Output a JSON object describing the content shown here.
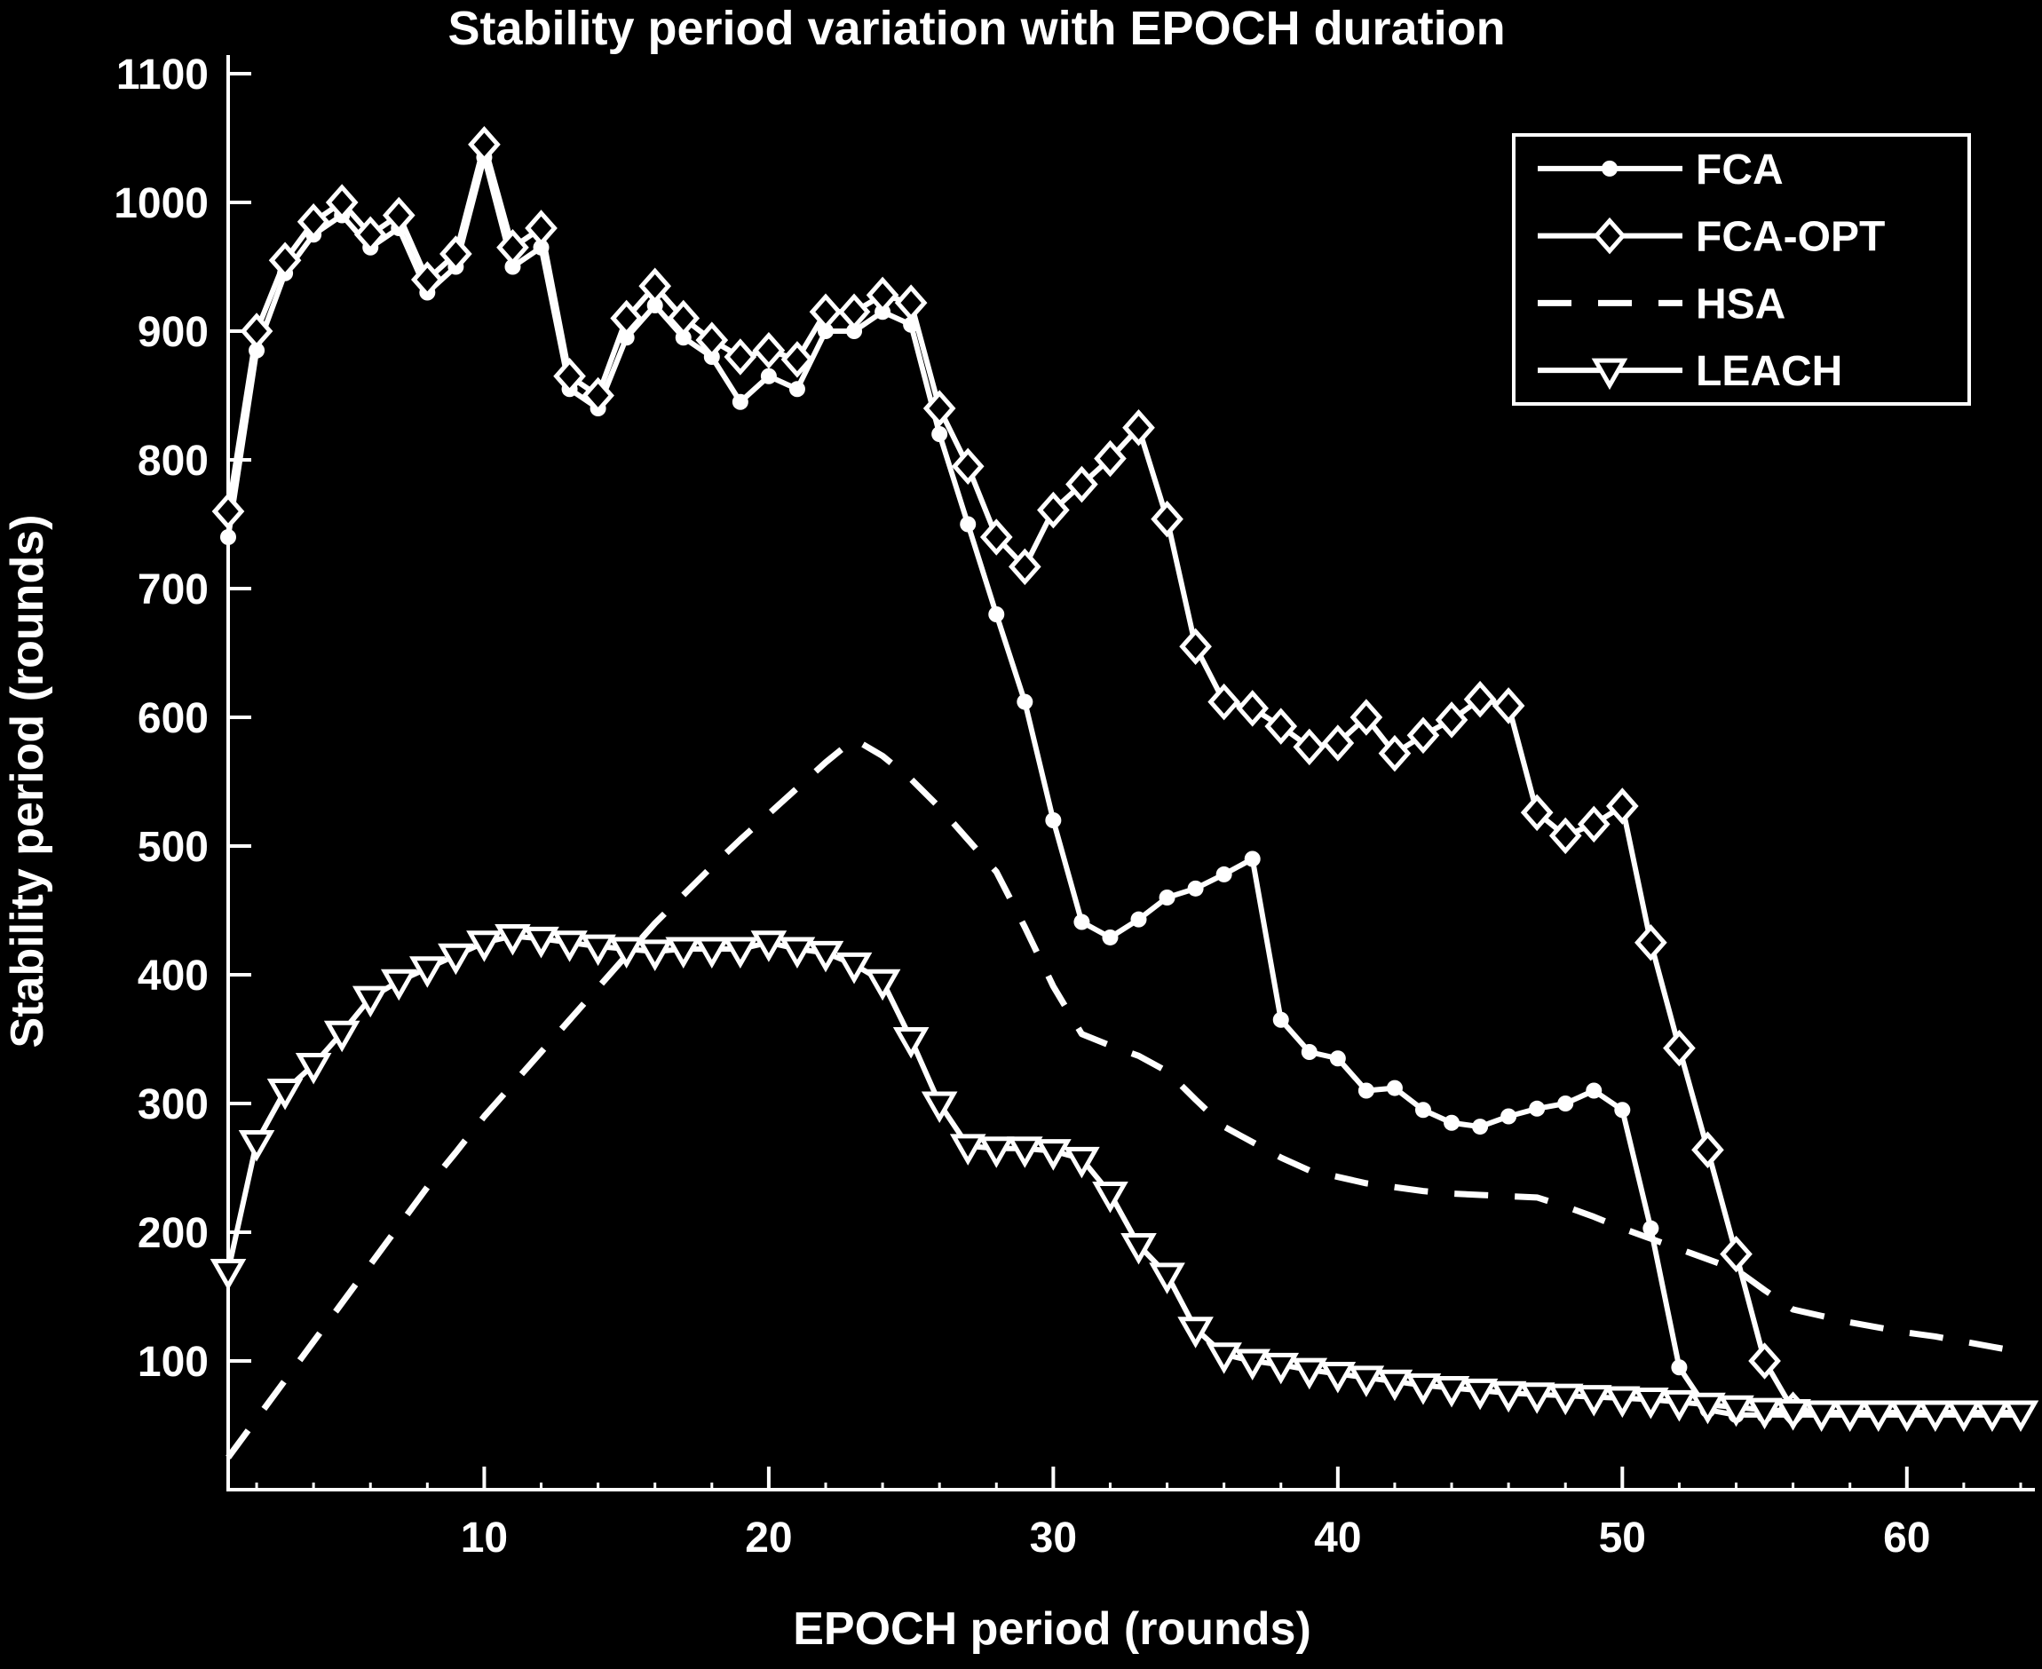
{
  "title": "Stability period variation with EPOCH duration",
  "colors": {
    "background": "#000000",
    "foreground": "#ffffff"
  },
  "chart_data": {
    "type": "line",
    "title": "Stability period variation with EPOCH duration",
    "xlabel": "EPOCH period (rounds)",
    "ylabel": "Stability period (rounds)",
    "xlim": [
      1,
      64.5
    ],
    "ylim": [
      0,
      1100
    ],
    "x_ticks": [
      10,
      20,
      30,
      40,
      50,
      60
    ],
    "y_ticks": [
      100,
      200,
      300,
      400,
      500,
      600,
      700,
      800,
      900,
      1000,
      1100
    ],
    "grid": false,
    "legend_position": "top-right",
    "x_start": 1,
    "x_step": 1,
    "series": [
      {
        "name": "FCA",
        "line": "solid",
        "marker": "dot",
        "values": [
          740,
          885,
          945,
          975,
          990,
          965,
          980,
          930,
          950,
          1035,
          950,
          965,
          855,
          840,
          895,
          920,
          895,
          880,
          845,
          865,
          855,
          900,
          900,
          915,
          905,
          820,
          750,
          680,
          612,
          520,
          441,
          429,
          443,
          460,
          467,
          478,
          490,
          365,
          340,
          335,
          310,
          312,
          295,
          285,
          282,
          290,
          296,
          300,
          310,
          295,
          203,
          95,
          62,
          58,
          58,
          58,
          58,
          58,
          58,
          58,
          58,
          58,
          58,
          58
        ]
      },
      {
        "name": "FCA-OPT",
        "line": "solid",
        "marker": "diamond",
        "values": [
          760,
          900,
          955,
          985,
          1000,
          975,
          990,
          940,
          960,
          1045,
          965,
          980,
          865,
          850,
          910,
          935,
          910,
          893,
          880,
          885,
          878,
          915,
          915,
          928,
          922,
          840,
          795,
          740,
          717,
          761,
          781,
          801,
          825,
          754,
          655,
          612,
          607,
          593,
          577,
          580,
          600,
          572,
          586,
          598,
          614,
          609,
          526,
          508,
          517,
          531,
          425,
          343,
          264,
          183,
          100,
          62
        ]
      },
      {
        "name": "HSA",
        "line": "dashed",
        "marker": "none",
        "values": [
          25,
          55,
          85,
          115,
          145,
          175,
          205,
          235,
          262,
          290,
          315,
          340,
          365,
          390,
          415,
          440,
          462,
          484,
          505,
          525,
          545,
          565,
          583,
          570,
          552,
          530,
          505,
          480,
          437,
          391,
          354,
          345,
          337,
          325,
          303,
          282,
          270,
          258,
          248,
          243,
          238,
          235,
          232,
          230,
          229,
          228,
          227,
          220,
          212,
          203,
          195,
          187,
          179,
          171,
          155,
          140,
          135,
          130,
          126,
          122,
          119,
          115,
          111,
          107
        ]
      },
      {
        "name": "LEACH",
        "line": "solid",
        "marker": "triangle-down",
        "values": [
          170,
          270,
          310,
          330,
          355,
          382,
          395,
          405,
          415,
          425,
          430,
          428,
          425,
          422,
          420,
          418,
          420,
          420,
          420,
          425,
          420,
          417,
          408,
          395,
          350,
          300,
          267,
          265,
          265,
          263,
          257,
          230,
          190,
          167,
          125,
          105,
          100,
          97,
          93,
          90,
          87,
          84,
          81,
          79,
          77,
          75,
          74,
          73,
          72,
          71,
          70,
          68,
          66,
          64,
          62,
          61,
          60,
          60,
          60,
          60,
          60,
          60,
          60,
          60
        ]
      }
    ]
  }
}
